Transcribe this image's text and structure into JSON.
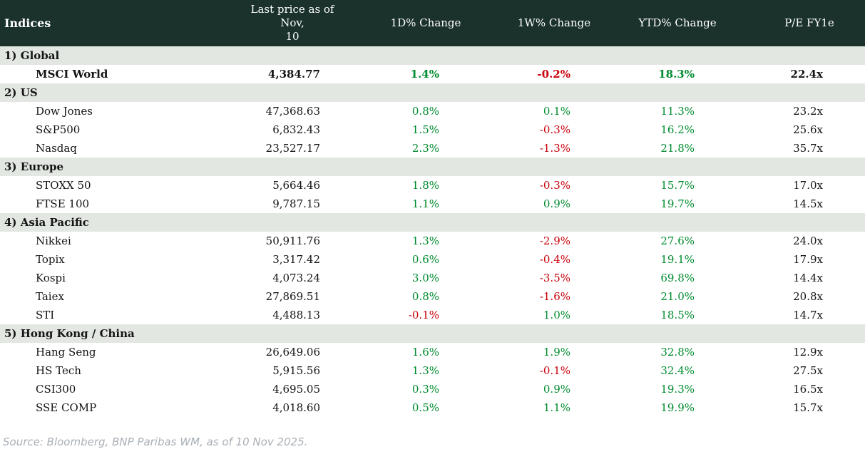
{
  "header": {
    "col_indices": "Indices",
    "col_last_price_line1": "Last price as of Nov,",
    "col_last_price_line2": "10",
    "col_1d": "1D% Change",
    "col_1w": "1W% Change",
    "col_ytd": "YTD% Change",
    "col_pe": "P/E FY1e"
  },
  "sections": [
    {
      "label": "1) Global",
      "rows": [
        {
          "name": "MSCI World",
          "last_price": "4,384.77",
          "chg_1d": "1.4%",
          "chg_1w": "-0.2%",
          "ytd": "18.3%",
          "pe": "22.4x"
        }
      ]
    },
    {
      "label": "2) US",
      "rows": [
        {
          "name": "Dow Jones",
          "last_price": "47,368.63",
          "chg_1d": "0.8%",
          "chg_1w": "0.1%",
          "ytd": "11.3%",
          "pe": "23.2x"
        },
        {
          "name": "S&P500",
          "last_price": "6,832.43",
          "chg_1d": "1.5%",
          "chg_1w": "-0.3%",
          "ytd": "16.2%",
          "pe": "25.6x"
        },
        {
          "name": "Nasdaq",
          "last_price": "23,527.17",
          "chg_1d": "2.3%",
          "chg_1w": "-1.3%",
          "ytd": "21.8%",
          "pe": "35.7x"
        }
      ]
    },
    {
      "label": "3) Europe",
      "rows": [
        {
          "name": "STOXX 50",
          "last_price": "5,664.46",
          "chg_1d": "1.8%",
          "chg_1w": "-0.3%",
          "ytd": "15.7%",
          "pe": "17.0x"
        },
        {
          "name": "FTSE 100",
          "last_price": "9,787.15",
          "chg_1d": "1.1%",
          "chg_1w": "0.9%",
          "ytd": "19.7%",
          "pe": "14.5x"
        }
      ]
    },
    {
      "label": "4) Asia Pacific",
      "rows": [
        {
          "name": "Nikkei",
          "last_price": "50,911.76",
          "chg_1d": "1.3%",
          "chg_1w": "-2.9%",
          "ytd": "27.6%",
          "pe": "24.0x"
        },
        {
          "name": "Topix",
          "last_price": "3,317.42",
          "chg_1d": "0.6%",
          "chg_1w": "-0.4%",
          "ytd": "19.1%",
          "pe": "17.9x"
        },
        {
          "name": "Kospi",
          "last_price": "4,073.24",
          "chg_1d": "3.0%",
          "chg_1w": "-3.5%",
          "ytd": "69.8%",
          "pe": "14.4x"
        },
        {
          "name": "Taiex",
          "last_price": "27,869.51",
          "chg_1d": "0.8%",
          "chg_1w": "-1.6%",
          "ytd": "21.0%",
          "pe": "20.8x"
        },
        {
          "name": "STI",
          "last_price": "4,488.13",
          "chg_1d": "-0.1%",
          "chg_1w": "1.0%",
          "ytd": "18.5%",
          "pe": "14.7x"
        }
      ]
    },
    {
      "label": "5) Hong Kong / China",
      "rows": [
        {
          "name": "Hang Seng",
          "last_price": "26,649.06",
          "chg_1d": "1.6%",
          "chg_1w": "1.9%",
          "ytd": "32.8%",
          "pe": "12.9x"
        },
        {
          "name": "HS Tech",
          "last_price": "5,915.56",
          "chg_1d": "1.3%",
          "chg_1w": "-0.1%",
          "ytd": "32.4%",
          "pe": "27.5x"
        },
        {
          "name": "CSI300",
          "last_price": "4,695.05",
          "chg_1d": "0.3%",
          "chg_1w": "0.9%",
          "ytd": "19.3%",
          "pe": "16.5x"
        },
        {
          "name": "SSE COMP",
          "last_price": "4,018.60",
          "chg_1d": "0.5%",
          "chg_1w": "1.1%",
          "ytd": "19.9%",
          "pe": "15.7x"
        }
      ]
    }
  ],
  "footer": {
    "source": "Source: Bloomberg, BNP Paribas WM, as of 10 Nov 2025."
  },
  "colors": {
    "header_bg": "#1a312c",
    "section_band_bg": "#e2e7e2",
    "positive": "#008b2e",
    "negative": "#c9000a"
  }
}
